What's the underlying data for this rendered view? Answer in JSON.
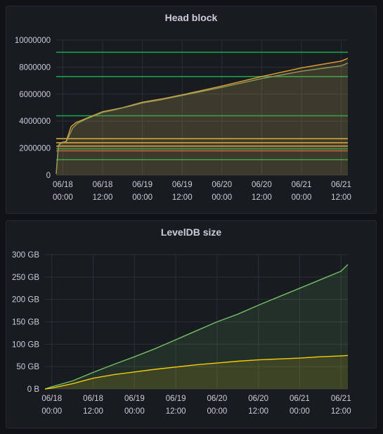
{
  "theme": {
    "background": "#111217",
    "panel_background": "#181b1f",
    "grid_color": "#2c3036",
    "text_color": "#ccccdc"
  },
  "panels": [
    {
      "title": "Head block",
      "x_tick_labels": [
        {
          "date": "06/18",
          "time": "00:00"
        },
        {
          "date": "06/18",
          "time": "12:00"
        },
        {
          "date": "06/19",
          "time": "00:00"
        },
        {
          "date": "06/19",
          "time": "12:00"
        },
        {
          "date": "06/20",
          "time": "00:00"
        },
        {
          "date": "06/20",
          "time": "12:00"
        },
        {
          "date": "06/21",
          "time": "00:00"
        },
        {
          "date": "06/21",
          "time": "12:00"
        }
      ],
      "y_tick_labels": [
        "0",
        "2000000",
        "4000000",
        "6000000",
        "8000000",
        "10000000"
      ]
    },
    {
      "title": "LevelDB size",
      "x_tick_labels": [
        {
          "date": "06/18",
          "time": "00:00"
        },
        {
          "date": "06/18",
          "time": "12:00"
        },
        {
          "date": "06/19",
          "time": "00:00"
        },
        {
          "date": "06/19",
          "time": "12:00"
        },
        {
          "date": "06/20",
          "time": "00:00"
        },
        {
          "date": "06/20",
          "time": "12:00"
        },
        {
          "date": "06/21",
          "time": "00:00"
        },
        {
          "date": "06/21",
          "time": "12:00"
        }
      ],
      "y_tick_labels": [
        "0 B",
        "50 GB",
        "100 GB",
        "150 GB",
        "200 GB",
        "250 GB",
        "300 GB"
      ]
    }
  ],
  "chart_data": [
    {
      "type": "line",
      "title": "Head block",
      "xlim": [
        "06/17 22:00",
        "06/21 14:00"
      ],
      "ylim": [
        0,
        10000000
      ],
      "grid": true,
      "fill_under": true,
      "series": [
        {
          "color": "#e0a33a",
          "x": [
            "06/17 22:00",
            "06/17 22:40",
            "06/17 23:20",
            "06/18 01:00",
            "06/18 02:30",
            "06/18 04:00",
            "06/18 07:00",
            "06/18 10:00",
            "06/18 12:00",
            "06/18 15:00",
            "06/18 18:00",
            "06/18 21:00",
            "06/19 00:00",
            "06/19 06:00",
            "06/19 12:00",
            "06/20 00:00",
            "06/20 12:00",
            "06/21 00:00",
            "06/21 12:00",
            "06/21 14:00"
          ],
          "y": [
            100000,
            2200000,
            2400000,
            2500000,
            3600000,
            3900000,
            4200000,
            4500000,
            4700000,
            4850000,
            5000000,
            5200000,
            5400000,
            5650000,
            5950000,
            6600000,
            7300000,
            7950000,
            8450000,
            8650000
          ]
        },
        {
          "color": "#8c9a5c",
          "x": [
            "06/17 22:00",
            "06/17 22:40",
            "06/17 23:20",
            "06/18 01:00",
            "06/18 03:00",
            "06/18 04:30",
            "06/18 07:00",
            "06/18 10:00",
            "06/18 12:00",
            "06/18 15:00",
            "06/18 18:00",
            "06/18 21:00",
            "06/19 00:00",
            "06/19 06:00",
            "06/19 12:00",
            "06/20 00:00",
            "06/20 12:00",
            "06/21 00:00",
            "06/21 12:00",
            "06/21 14:00"
          ],
          "y": [
            100000,
            2150000,
            2350000,
            2450000,
            3500000,
            3850000,
            4150000,
            4450000,
            4650000,
            4800000,
            4980000,
            5150000,
            5350000,
            5600000,
            5900000,
            6500000,
            7150000,
            7700000,
            8100000,
            8300000
          ]
        }
      ],
      "threshold_lines": [
        {
          "color": "#1f9e4b",
          "y": 1150000
        },
        {
          "color": "#c4503a",
          "y": 1800000
        },
        {
          "color": "#1f9e4b",
          "y": 1950000
        },
        {
          "color": "#e0a33a",
          "y": 2150000
        },
        {
          "color": "#e0a33a",
          "y": 2400000
        },
        {
          "color": "#e0a33a",
          "y": 2700000
        },
        {
          "color": "#1f9e4b",
          "y": 4400000
        },
        {
          "color": "#1f9e4b",
          "y": 7300000
        },
        {
          "color": "#1f9e4b",
          "y": 9100000
        }
      ]
    },
    {
      "type": "line",
      "title": "LevelDB size",
      "xlim": [
        "06/17 22:00",
        "06/21 14:00"
      ],
      "ylim": [
        0,
        300
      ],
      "y_unit": "GB",
      "grid": true,
      "fill_under": true,
      "series": [
        {
          "color": "#73bf69",
          "x": [
            "06/17 22:00",
            "06/18 00:00",
            "06/18 06:00",
            "06/18 12:00",
            "06/18 18:00",
            "06/19 00:00",
            "06/19 06:00",
            "06/19 12:00",
            "06/19 18:00",
            "06/20 00:00",
            "06/20 06:00",
            "06/20 12:00",
            "06/20 18:00",
            "06/21 00:00",
            "06/21 06:00",
            "06/21 12:00",
            "06/21 14:00"
          ],
          "y": [
            0,
            5,
            18,
            37,
            55,
            72,
            90,
            110,
            130,
            150,
            167,
            187,
            206,
            225,
            244,
            263,
            278
          ]
        },
        {
          "color": "#f2cc0c",
          "x": [
            "06/17 22:00",
            "06/18 00:00",
            "06/18 06:00",
            "06/18 12:00",
            "06/18 18:00",
            "06/19 00:00",
            "06/19 06:00",
            "06/19 12:00",
            "06/19 18:00",
            "06/20 00:00",
            "06/20 06:00",
            "06/20 12:00",
            "06/20 18:00",
            "06/21 00:00",
            "06/21 06:00",
            "06/21 12:00",
            "06/21 14:00"
          ],
          "y": [
            0,
            2,
            12,
            24,
            32,
            38,
            44,
            49,
            54,
            58,
            62,
            65,
            67,
            69,
            72,
            74,
            75
          ]
        }
      ]
    }
  ]
}
